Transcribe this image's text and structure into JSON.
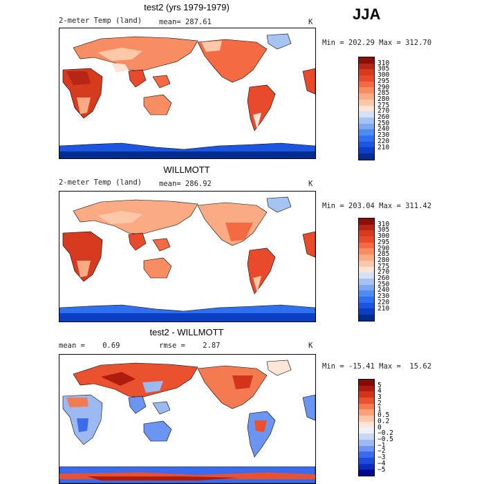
{
  "season": "JJA",
  "colors": {
    "abs_scale": [
      "#002b8f",
      "#0a3fc4",
      "#1c55e0",
      "#2f6ff0",
      "#4f8cf2",
      "#7aa8f2",
      "#a6c4f2",
      "#d4e2f7",
      "#fde4d4",
      "#fcc8a8",
      "#fbab84",
      "#f88c62",
      "#f36a43",
      "#e84b2b",
      "#d63a1f",
      "#b52614",
      "#8c0f07"
    ],
    "diff_scale": [
      "#000a8c",
      "#0c2cc0",
      "#1f4ad9",
      "#3b6aec",
      "#6b95f0",
      "#9cb9f2",
      "#c9d9f5",
      "#ecf2fb",
      "#fde6d8",
      "#fcc7a8",
      "#f9a279",
      "#f47a52",
      "#e9512f",
      "#d2341c",
      "#ad1c0c",
      "#850a04"
    ]
  },
  "panels": [
    {
      "title": "test2 (yrs 1979-1979)",
      "left_label": "2-meter Temp (land)",
      "center_label": "mean= 287.61",
      "unit": "K",
      "minmax": "Min = 202.29 Max = 312.70",
      "colorbar_labels": [
        "310",
        "305",
        "300",
        "295",
        "290",
        "285",
        "280",
        "275",
        "270",
        "260",
        "250",
        "240",
        "230",
        "220",
        "210"
      ]
    },
    {
      "title": "WILLMOTT",
      "left_label": "2-meter Temp (land)",
      "center_label": "mean= 286.92",
      "unit": "K",
      "minmax": "Min = 203.04 Max = 311.42",
      "colorbar_labels": [
        "310",
        "305",
        "300",
        "295",
        "290",
        "285",
        "280",
        "275",
        "270",
        "260",
        "250",
        "240",
        "230",
        "220",
        "210"
      ]
    },
    {
      "title": "test2 - WILLMOTT",
      "left_label": "mean =    0.69",
      "center_label": "rmse =    2.87",
      "unit": "K",
      "minmax": "Min = -15.41 Max =  15.62",
      "colorbar_labels": [
        "5",
        "4",
        "3",
        "2",
        "1",
        "0.5",
        "0.2",
        "0",
        "−0.2",
        "−0.5",
        "−1",
        "−2",
        "−3",
        "−4",
        "−5"
      ]
    }
  ],
  "chart_data": [
    {
      "type": "heatmap",
      "title": "test2 (yrs 1979-1979)",
      "field": "2-meter Temp (land)",
      "mean": 287.61,
      "min": 202.29,
      "max": 312.7,
      "unit": "K",
      "colorbar_levels": [
        310,
        305,
        300,
        295,
        290,
        285,
        280,
        275,
        270,
        260,
        250,
        240,
        230,
        220,
        210
      ]
    },
    {
      "type": "heatmap",
      "title": "WILLMOTT",
      "field": "2-meter Temp (land)",
      "mean": 286.92,
      "min": 203.04,
      "max": 311.42,
      "unit": "K",
      "colorbar_levels": [
        310,
        305,
        300,
        295,
        290,
        285,
        280,
        275,
        270,
        260,
        250,
        240,
        230,
        220,
        210
      ]
    },
    {
      "type": "heatmap",
      "title": "test2 - WILLMOTT",
      "mean": 0.69,
      "rmse": 2.87,
      "min": -15.41,
      "max": 15.62,
      "unit": "K",
      "colorbar_levels": [
        5,
        4,
        3,
        2,
        1,
        0.5,
        0.2,
        0,
        -0.2,
        -0.5,
        -1,
        -2,
        -3,
        -4,
        -5
      ]
    }
  ]
}
